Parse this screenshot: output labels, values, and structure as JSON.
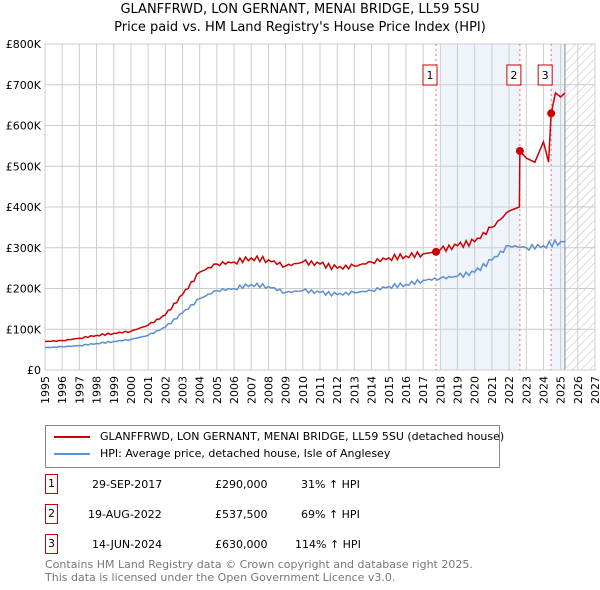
{
  "chart_data": {
    "type": "line",
    "title": "GLANFFRWD, LON GERNANT, MENAI BRIDGE, LL59 5SU",
    "subtitle": "Price paid vs. HM Land Registry's House Price Index (HPI)",
    "xlim": [
      1995,
      2027
    ],
    "ylim": [
      0,
      800000
    ],
    "x_ticks": [
      "1995",
      "1996",
      "1997",
      "1998",
      "1999",
      "2000",
      "2001",
      "2002",
      "2003",
      "2004",
      "2005",
      "2006",
      "2007",
      "2008",
      "2009",
      "2010",
      "2011",
      "2012",
      "2013",
      "2014",
      "2015",
      "2016",
      "2017",
      "2018",
      "2019",
      "2020",
      "2021",
      "2022",
      "2023",
      "2024",
      "2025",
      "2026",
      "2027"
    ],
    "y_ticks": [
      {
        "v": 0,
        "label": "£0"
      },
      {
        "v": 100000,
        "label": "£100K"
      },
      {
        "v": 200000,
        "label": "£200K"
      },
      {
        "v": 300000,
        "label": "£300K"
      },
      {
        "v": 400000,
        "label": "£400K"
      },
      {
        "v": 500000,
        "label": "£500K"
      },
      {
        "v": 600000,
        "label": "£600K"
      },
      {
        "v": 700000,
        "label": "£700K"
      },
      {
        "v": 800000,
        "label": "£800K"
      }
    ],
    "grid": true,
    "series": [
      {
        "name": "GLANFFRWD, LON GERNANT, MENAI BRIDGE, LL59 5SU (detached house)",
        "color": "#cc0000",
        "x": [
          1995,
          1996,
          1997,
          1998,
          1999,
          2000,
          2001,
          2002,
          2003,
          2004,
          2005,
          2006,
          2007,
          2008,
          2009,
          2010,
          2011,
          2012,
          2013,
          2014,
          2015,
          2016,
          2017,
          2017.75,
          2018,
          2019,
          2020,
          2021,
          2022,
          2022.6,
          2022.63,
          2023,
          2023.5,
          2024,
          2024.3,
          2024.45,
          2024.7,
          2025,
          2025.25
        ],
        "y": [
          70000,
          72000,
          78000,
          85000,
          90000,
          95000,
          110000,
          135000,
          185000,
          240000,
          260000,
          265000,
          275000,
          270000,
          255000,
          265000,
          260000,
          250000,
          255000,
          265000,
          275000,
          280000,
          285000,
          290000,
          295000,
          305000,
          315000,
          350000,
          390000,
          400000,
          537500,
          520000,
          510000,
          560000,
          510000,
          630000,
          680000,
          670000,
          680000
        ]
      },
      {
        "name": "HPI: Average price, detached house, Isle of Anglesey",
        "color": "#5b8fd4",
        "x": [
          1995,
          1996,
          1997,
          1998,
          1999,
          2000,
          2001,
          2002,
          2003,
          2004,
          2005,
          2006,
          2007,
          2008,
          2009,
          2010,
          2011,
          2012,
          2013,
          2014,
          2015,
          2016,
          2017,
          2018,
          2019,
          2020,
          2021,
          2022,
          2023,
          2024,
          2025,
          2025.25
        ],
        "y": [
          55000,
          57000,
          60000,
          65000,
          70000,
          75000,
          85000,
          105000,
          140000,
          175000,
          195000,
          200000,
          210000,
          205000,
          190000,
          195000,
          190000,
          185000,
          190000,
          195000,
          205000,
          210000,
          220000,
          225000,
          230000,
          240000,
          270000,
          305000,
          300000,
          305000,
          315000,
          315000
        ]
      }
    ],
    "sales": [
      {
        "n": "1",
        "x": 2017.75,
        "y": 290000,
        "date": "29-SEP-2017",
        "price": "£290,000",
        "hpi": "31% ↑ HPI"
      },
      {
        "n": "2",
        "x": 2022.63,
        "y": 537500,
        "date": "19-AUG-2022",
        "price": "£537,500",
        "hpi": "69% ↑ HPI"
      },
      {
        "n": "3",
        "x": 2024.45,
        "y": 630000,
        "date": "14-JUN-2024",
        "price": "£630,000",
        "hpi": "114% ↑ HPI"
      }
    ],
    "shaded_ranges": [
      [
        2018,
        2022.63
      ],
      [
        2024.45,
        2025.25
      ]
    ],
    "forecast_from": 2025.25
  },
  "footer": [
    "Contains HM Land Registry data © Crown copyright and database right 2025.",
    "This data is licensed under the Open Government Licence v3.0."
  ]
}
